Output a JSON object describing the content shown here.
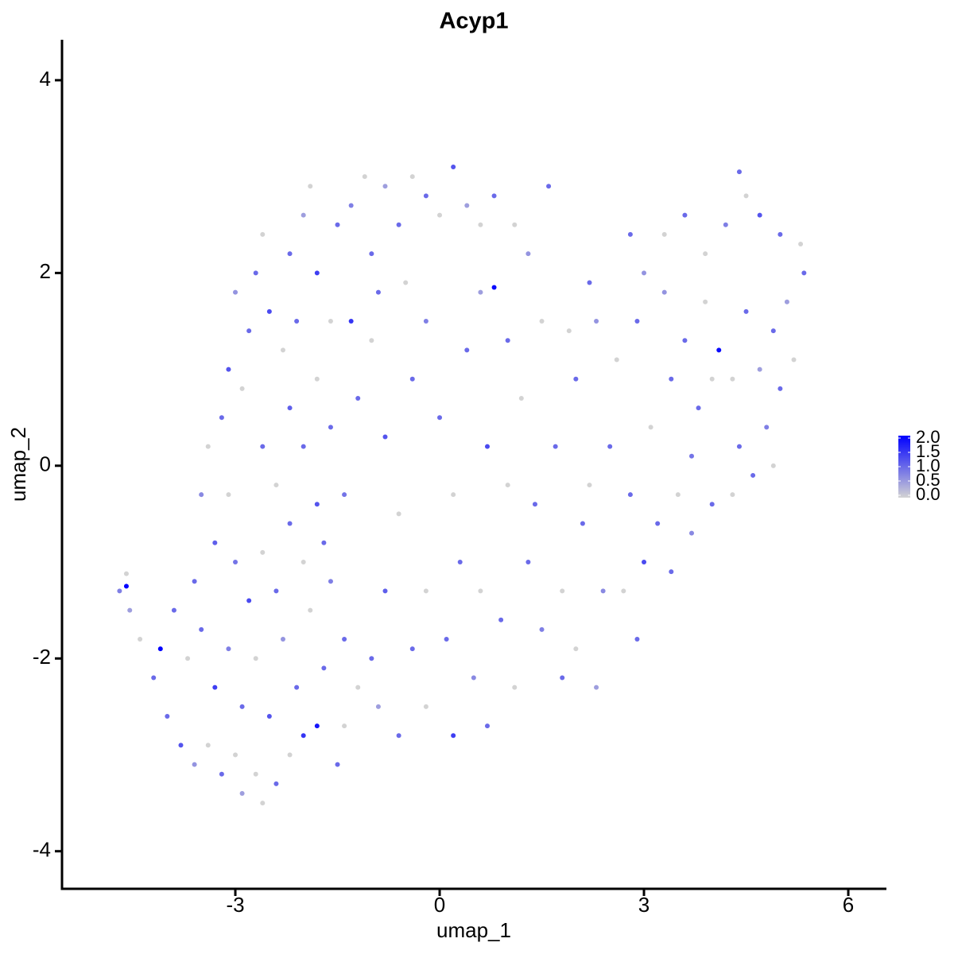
{
  "chart_data": {
    "type": "scatter",
    "title": "Acyp1",
    "x_label": "umap_1",
    "y_label": "umap_2",
    "xlim": [
      -5.545,
      6.56
    ],
    "ylim": [
      -4.39,
      4.42
    ],
    "xticks": [
      -3,
      0,
      3,
      6
    ],
    "yticks": [
      -4,
      -2,
      0,
      2,
      4
    ],
    "grid": false,
    "color_low": "#d3d3d3",
    "color_high": "#0000ff",
    "color_lim": [
      0,
      2
    ],
    "color_ticks": [
      {
        "value": 2,
        "label": "2.0"
      },
      1.5,
      {
        "value": 1,
        "label": "1.0"
      },
      0.5,
      {
        "value": 0,
        "label": "0.0"
      }
    ],
    "x": [
      -4.6,
      -4.7,
      -4.55,
      -4.6,
      -4.4,
      -4.1,
      -4.2,
      -4.0,
      -3.8,
      -3.6,
      -3.4,
      -3.2,
      -3.0,
      -2.9,
      -2.7,
      -2.6,
      -2.4,
      -2.2,
      -2.0,
      -1.8,
      -1.5,
      -1.4,
      -3.9,
      -3.7,
      -3.5,
      -3.3,
      -3.1,
      -2.9,
      -2.7,
      -2.5,
      -2.3,
      -2.1,
      -1.9,
      -1.7,
      -3.6,
      -3.3,
      -3.1,
      -3.0,
      -2.8,
      -2.6,
      -2.4,
      -2.2,
      -2.0,
      -1.8,
      -1.6,
      -1.4,
      -1.2,
      -1.0,
      -3.5,
      -3.4,
      -3.2,
      -3.1,
      -2.9,
      -2.8,
      -3.0,
      -2.7,
      -2.6,
      -2.5,
      -2.3,
      -2.2,
      -2.0,
      -1.9,
      -1.8,
      -1.6,
      -1.5,
      -1.3,
      -1.1,
      -1.0,
      -0.8,
      -0.6,
      -0.4,
      -0.2,
      0,
      0.2,
      0.4,
      0.6,
      0.8,
      1.1,
      1.6,
      1.3,
      -2.6,
      -2.4,
      -2.2,
      -2.0,
      -1.8,
      -1.6,
      -1.4,
      -1.2,
      -1.0,
      -0.8,
      -0.6,
      -0.4,
      -0.2,
      -0.9,
      -0.5,
      -1.3,
      -2.1,
      -1.7,
      0,
      0.2,
      0.4,
      0.6,
      0.8,
      1.0,
      1.2,
      0.7,
      0.3,
      -0.2,
      0.1,
      0.5,
      0.9,
      1.1,
      0.7,
      0.2,
      -0.2,
      -0.6,
      -0.9,
      -0.4,
      -0.8,
      0.6,
      1.3,
      1.5,
      1.8,
      1.4,
      1.0,
      1.7,
      2.0,
      2.3,
      1.5,
      2.2,
      1.9,
      2.6,
      2.1,
      2.4,
      2.0,
      1.8,
      2.8,
      3.0,
      3.3,
      3.6,
      3.9,
      4.2,
      4.4,
      4.5,
      4.7,
      5.0,
      5.3,
      5.35,
      5.1,
      4.9,
      5.2,
      5.0,
      4.8,
      4.9,
      4.6,
      4.3,
      4.0,
      3.7,
      3.5,
      3.2,
      3.0,
      2.7,
      2.8,
      3.1,
      3.4,
      3.8,
      4.1,
      4.3,
      4.5,
      4.7,
      3.9,
      3.6,
      3.3,
      2.9,
      4.0,
      4.4,
      2.5,
      2.2,
      3.7,
      3.4,
      2.9,
      2.3
    ],
    "values": [
      -1.25,
      -1.3,
      -1.5,
      -1.12,
      -1.8,
      -1.9,
      -2.2,
      -2.6,
      -2.9,
      -3.1,
      -2.9,
      -3.2,
      -3.0,
      -3.4,
      -3.2,
      -3.5,
      -3.3,
      -3.0,
      -2.8,
      -2.7,
      -3.1,
      -2.7,
      -1.5,
      -2.0,
      -1.7,
      -2.3,
      -1.9,
      -2.5,
      -2.0,
      -2.6,
      -1.8,
      -2.3,
      -1.5,
      -2.1,
      -1.2,
      -0.8,
      -0.3,
      -1.0,
      -1.4,
      -0.9,
      -1.3,
      -0.6,
      -1.0,
      -0.4,
      -1.2,
      -1.8,
      -2.3,
      -2.0,
      -0.3,
      0.2,
      0.5,
      1.0,
      0.8,
      1.4,
      1.8,
      2.0,
      2.4,
      1.6,
      1.2,
      2.2,
      2.6,
      2.9,
      2.0,
      1.5,
      2.5,
      2.7,
      3.0,
      2.2,
      2.9,
      2.5,
      3.0,
      2.8,
      2.6,
      3.1,
      2.7,
      2.5,
      2.8,
      2.5,
      2.9,
      2.2,
      0.2,
      -0.2,
      0.6,
      0.2,
      0.9,
      0.4,
      -0.3,
      0.7,
      1.3,
      0.3,
      -0.5,
      0.9,
      1.5,
      1.8,
      1.9,
      1.5,
      1.5,
      -0.8,
      0.5,
      -0.3,
      1.2,
      1.8,
      1.85,
      1.3,
      0.7,
      0.2,
      -1.0,
      -1.3,
      -1.8,
      -2.2,
      -1.6,
      -2.3,
      -2.7,
      -2.8,
      -2.5,
      -2.8,
      -2.5,
      -1.9,
      -1.3,
      -1.3,
      -1.0,
      -1.7,
      -1.3,
      -0.4,
      -0.2,
      0.2,
      0.9,
      1.5,
      1.5,
      1.9,
      1.4,
      1.1,
      -0.6,
      -1.3,
      -1.9,
      -2.2,
      2.4,
      2.0,
      2.4,
      2.6,
      2.2,
      2.5,
      3.05,
      2.8,
      2.6,
      2.4,
      2.3,
      2.0,
      1.7,
      1.4,
      1.1,
      0.8,
      0.4,
      0.0,
      -0.1,
      -0.3,
      -0.4,
      0.1,
      -0.3,
      -0.6,
      -1.0,
      -1.3,
      -0.3,
      0.4,
      0.9,
      0.6,
      1.2,
      0.9,
      1.6,
      1.0,
      1.7,
      1.3,
      1.8,
      1.5,
      0.9,
      0.2,
      0.2,
      -0.2,
      -0.7,
      -1.1,
      -1.8,
      -2.3
    ],
    "color_values": [
      2,
      0.8,
      0.5,
      0,
      0,
      2,
      1,
      1,
      1.2,
      0.6,
      0,
      1,
      0,
      0.5,
      0,
      0,
      1,
      0,
      1.5,
      1.8,
      1,
      0,
      1,
      0,
      1,
      1.4,
      0.8,
      1,
      0,
      1.2,
      0.6,
      1,
      0,
      1,
      1,
      1.1,
      0,
      0.9,
      1.3,
      0,
      1,
      1,
      0,
      1.2,
      0.8,
      1,
      0,
      1,
      0.7,
      0,
      1,
      1.2,
      0,
      1,
      0.6,
      1,
      0,
      1.3,
      0,
      1,
      0.5,
      0,
      1.4,
      0,
      1,
      0.8,
      0,
      1,
      0.5,
      1,
      0,
      1,
      0,
      1.2,
      0.5,
      0,
      1,
      0,
      1,
      0.6,
      1,
      0,
      1.1,
      1,
      0,
      1,
      0.9,
      1,
      0,
      1.2,
      0,
      1,
      0.8,
      1,
      0,
      1.5,
      1,
      1,
      1,
      0,
      1,
      0.5,
      1.9,
      1,
      0,
      1.3,
      1,
      0,
      1,
      0.7,
      1,
      0,
      1,
      1.4,
      0,
      1,
      0.5,
      1,
      1.1,
      0,
      1,
      0.8,
      0,
      1,
      0,
      1,
      1,
      0.6,
      0,
      1,
      0,
      0,
      1,
      0.7,
      0,
      1,
      1,
      0.6,
      0,
      1,
      0,
      0.8,
      1,
      0,
      1.2,
      1,
      0,
      1,
      0.5,
      1,
      0,
      1,
      0.8,
      0,
      1,
      0,
      1,
      0.9,
      0,
      1,
      1.3,
      0,
      1,
      0,
      1,
      1,
      1.9,
      0,
      1,
      0.5,
      0,
      1,
      0.6,
      1,
      0,
      1,
      1,
      0,
      0.7,
      1,
      1,
      0.5
    ]
  }
}
